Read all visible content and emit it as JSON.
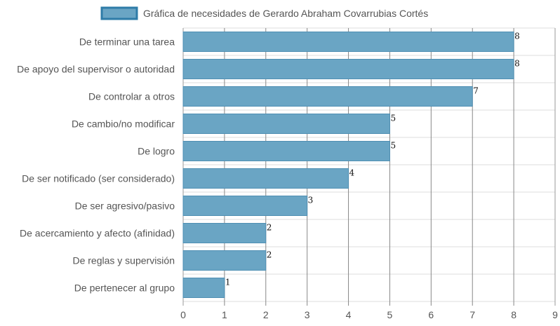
{
  "chart_data": {
    "type": "bar",
    "orientation": "horizontal",
    "categories": [
      "De terminar una tarea",
      "De apoyo del supervisor o autoridad",
      "De controlar a otros",
      "De cambio/no modificar",
      "De logro",
      "De ser notificado (ser considerado)",
      "De ser agresivo/pasivo",
      "De acercamiento y afecto (afinidad)",
      "De reglas y supervisión",
      "De pertenecer al grupo"
    ],
    "series": [
      {
        "name": "Gráfica de necesidades de Gerardo Abraham Covarrubias Cortés",
        "values": [
          8,
          8,
          7,
          5,
          5,
          4,
          3,
          2,
          2,
          1
        ]
      }
    ],
    "xlim": [
      0,
      9
    ],
    "x_ticks": [
      "0",
      "1",
      "2",
      "3",
      "4",
      "5",
      "6",
      "7",
      "8",
      "9"
    ],
    "legend_position": "top",
    "grid": true,
    "colors": {
      "bar_fill": "#6aa5c4",
      "bar_border": "#4f8fb3",
      "legend_fill": "#6aa5c4",
      "legend_border": "#2f7ca8",
      "grid": "#dddddd",
      "grid_major": "#888888",
      "axis": "#999999"
    }
  }
}
